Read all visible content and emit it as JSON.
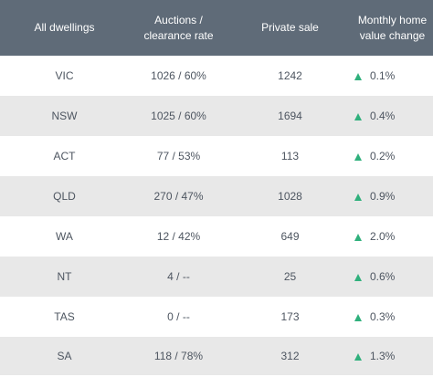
{
  "header": {
    "col1": "All dwellings",
    "col2_line1": "Auctions /",
    "col2_line2": "clearance rate",
    "col3": "Private sale",
    "col4_line1": "Monthly home",
    "col4_line2": "value change"
  },
  "rows": [
    {
      "state": "VIC",
      "auctions": "1026 / 60%",
      "private": "1242",
      "change": "0.1%"
    },
    {
      "state": "NSW",
      "auctions": "1025 / 60%",
      "private": "1694",
      "change": "0.4%"
    },
    {
      "state": "ACT",
      "auctions": "77 / 53%",
      "private": "113",
      "change": "0.2%"
    },
    {
      "state": "QLD",
      "auctions": "270 / 47%",
      "private": "1028",
      "change": "0.9%"
    },
    {
      "state": "WA",
      "auctions": "12 / 42%",
      "private": "649",
      "change": "2.0%"
    },
    {
      "state": "NT",
      "auctions": "4 / --",
      "private": "25",
      "change": "0.6%"
    },
    {
      "state": "TAS",
      "auctions": "0 / --",
      "private": "173",
      "change": "0.3%"
    },
    {
      "state": "SA",
      "auctions": "118 / 78%",
      "private": "312",
      "change": "1.3%"
    }
  ],
  "colors": {
    "header_bg": "#5f6b78",
    "row_alt_bg": "#e8e8e8",
    "up_arrow": "#2fb07c"
  },
  "icons": {
    "change_indicator": "triangle-up-icon"
  }
}
